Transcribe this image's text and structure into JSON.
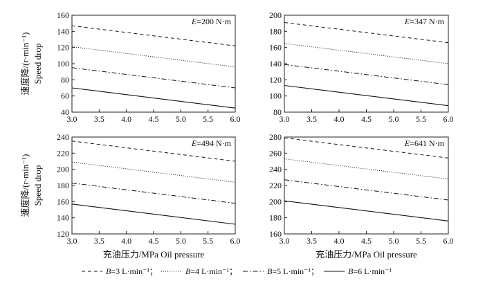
{
  "chart_data": [
    {
      "type": "line",
      "annotation": "E=200 N·m",
      "x": [
        3.0,
        6.0
      ],
      "xticks": [
        "3.0",
        "3.5",
        "4.0",
        "4.5",
        "5.0",
        "5.5",
        "6.0"
      ],
      "xlim": [
        3.0,
        6.0
      ],
      "ylim": [
        40,
        160
      ],
      "yticks": [
        "40",
        "60",
        "80",
        "100",
        "120",
        "140",
        "160"
      ],
      "series": [
        {
          "name": "B=3 L·min⁻¹",
          "style": "dashed",
          "values": [
            147,
            122
          ]
        },
        {
          "name": "B=4 L·min⁻¹",
          "style": "dotted",
          "values": [
            121,
            96
          ]
        },
        {
          "name": "B=5 L·min⁻¹",
          "style": "dashdot",
          "values": [
            95,
            70
          ]
        },
        {
          "name": "B=6 L·min⁻¹",
          "style": "solid",
          "values": [
            70,
            45
          ]
        }
      ]
    },
    {
      "type": "line",
      "annotation": "E=347 N·m",
      "x": [
        3.0,
        6.0
      ],
      "xticks": [
        "3.0",
        "3.5",
        "4.0",
        "4.5",
        "5.0",
        "5.5",
        "6.0"
      ],
      "xlim": [
        3.0,
        6.0
      ],
      "ylim": [
        80,
        200
      ],
      "yticks": [
        "80",
        "100",
        "120",
        "140",
        "160",
        "180",
        "200"
      ],
      "series": [
        {
          "name": "B=3 L·min⁻¹",
          "style": "dashed",
          "values": [
            191,
            166
          ]
        },
        {
          "name": "B=4 L·min⁻¹",
          "style": "dotted",
          "values": [
            165,
            140
          ]
        },
        {
          "name": "B=5 L·min⁻¹",
          "style": "dashdot",
          "values": [
            139,
            114
          ]
        },
        {
          "name": "B=6 L·min⁻¹",
          "style": "solid",
          "values": [
            113,
            88
          ]
        }
      ]
    },
    {
      "type": "line",
      "annotation": "E=494 N·m",
      "x": [
        3.0,
        6.0
      ],
      "xticks": [
        "3.0",
        "3.5",
        "4.0",
        "4.5",
        "5.0",
        "5.5",
        "6.0"
      ],
      "xlim": [
        3.0,
        6.0
      ],
      "ylim": [
        120,
        240
      ],
      "yticks": [
        "120",
        "140",
        "160",
        "180",
        "200",
        "220",
        "240"
      ],
      "series": [
        {
          "name": "B=3 L·min⁻¹",
          "style": "dashed",
          "values": [
            235,
            210
          ]
        },
        {
          "name": "B=4 L·min⁻¹",
          "style": "dotted",
          "values": [
            209,
            184
          ]
        },
        {
          "name": "B=5 L·min⁻¹",
          "style": "dashdot",
          "values": [
            183,
            158
          ]
        },
        {
          "name": "B=6 L·min⁻¹",
          "style": "solid",
          "values": [
            157,
            132
          ]
        }
      ]
    },
    {
      "type": "line",
      "annotation": "E=641 N·m",
      "x": [
        3.0,
        6.0
      ],
      "xticks": [
        "3.0",
        "3.5",
        "4.0",
        "4.5",
        "5.0",
        "5.5",
        "6.0"
      ],
      "xlim": [
        3.0,
        6.0
      ],
      "ylim": [
        160,
        280
      ],
      "yticks": [
        "160",
        "180",
        "200",
        "220",
        "240",
        "260",
        "280"
      ],
      "series": [
        {
          "name": "B=3 L·min⁻¹",
          "style": "dashed",
          "values": [
            279,
            254
          ]
        },
        {
          "name": "B=4 L·min⁻¹",
          "style": "dotted",
          "values": [
            253,
            228
          ]
        },
        {
          "name": "B=5 L·min⁻¹",
          "style": "dashdot",
          "values": [
            227,
            202
          ]
        },
        {
          "name": "B=6 L·min⁻¹",
          "style": "solid",
          "values": [
            201,
            176
          ]
        }
      ]
    }
  ],
  "ylabel_cn": "速度降/(r·min⁻¹)",
  "ylabel_en": "Speed drop",
  "xlabel": "充油压力/MPa   Oil pressure",
  "legend": [
    {
      "label": "B=3 L·min⁻¹；",
      "style": "dashed"
    },
    {
      "label": "B=4 L·min⁻¹；",
      "style": "dotted"
    },
    {
      "label": "B=5 L·min⁻¹；",
      "style": "dashdot"
    },
    {
      "label": "B=6 L·min⁻¹",
      "style": "solid"
    }
  ]
}
